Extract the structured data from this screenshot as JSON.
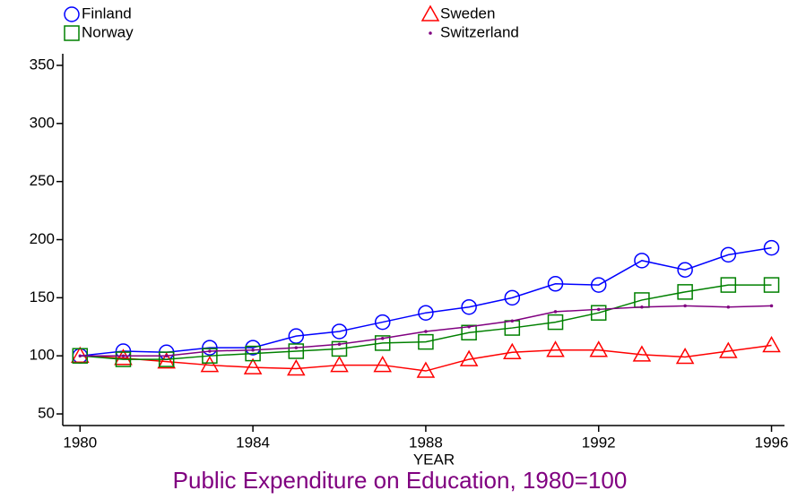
{
  "chart_data": {
    "type": "line",
    "title": "Public Expenditure on Education, 1980=100",
    "x_label": "YEAR",
    "x": [
      1980,
      1981,
      1982,
      1983,
      1984,
      1985,
      1986,
      1987,
      1988,
      1989,
      1990,
      1991,
      1992,
      1993,
      1994,
      1995,
      1996
    ],
    "series": [
      {
        "name": "Finland",
        "color": "#0000ff",
        "marker": "circle",
        "values": [
          100,
          104,
          103,
          107,
          107,
          117,
          121,
          129,
          137,
          142,
          150,
          162,
          161,
          182,
          174,
          187,
          193
        ]
      },
      {
        "name": "Sweden",
        "color": "#ff0000",
        "marker": "triangle",
        "values": [
          100,
          98,
          95,
          92,
          90,
          89,
          92,
          92,
          87,
          97,
          103,
          105,
          105,
          101,
          99,
          104,
          109
        ]
      },
      {
        "name": "Norway",
        "color": "#008000",
        "marker": "square",
        "values": [
          100,
          97,
          97,
          100,
          102,
          104,
          106,
          111,
          112,
          120,
          124,
          129,
          137,
          148,
          155,
          161,
          161
        ]
      },
      {
        "name": "Switzerland",
        "color": "#800080",
        "marker": "dot",
        "values": [
          100,
          100,
          100,
          104,
          105,
          107,
          110,
          115,
          121,
          125,
          130,
          138,
          140,
          142,
          143,
          142,
          143
        ]
      }
    ],
    "xlim": [
      1979.6,
      1996.3
    ],
    "xticks": [
      1980,
      1984,
      1988,
      1992,
      1996
    ],
    "ylim": [
      40,
      360
    ],
    "yticks": [
      50,
      100,
      150,
      200,
      250,
      300,
      350
    ],
    "grid": false
  }
}
